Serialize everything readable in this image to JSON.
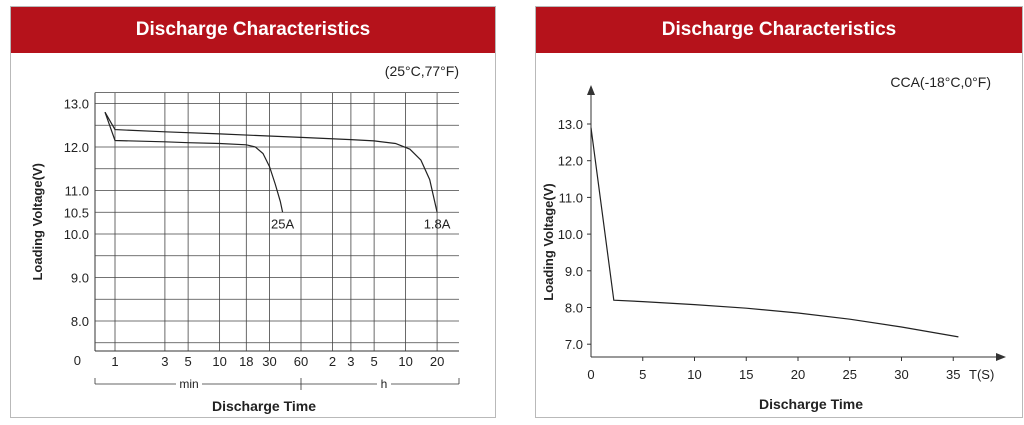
{
  "chart_data": [
    {
      "type": "line",
      "title": "Discharge Characteristics",
      "annotation": "(25°C,77°F)",
      "xlabel": "Discharge Time",
      "ylabel": "Loading Voltage(V)",
      "y_ticks": [
        "13.0",
        "12.0",
        "11.0",
        "10.5",
        "10.0",
        "9.0",
        "8.0"
      ],
      "y_zero_label": "0",
      "x_ticks": [
        "1",
        "3",
        "5",
        "10",
        "18",
        "30",
        "60",
        "2",
        "3",
        "5",
        "10",
        "20"
      ],
      "x_scale": "log (min, then h)",
      "x_unit_min": "min",
      "x_unit_h": "h",
      "grid": true,
      "series": [
        {
          "name": "25A",
          "x_min": [
            0.5,
            1,
            3,
            5,
            10,
            18,
            22,
            26,
            30,
            34,
            38,
            40
          ],
          "values": [
            12.8,
            12.15,
            12.12,
            12.1,
            12.08,
            12.05,
            12.0,
            11.85,
            11.55,
            11.15,
            10.75,
            10.5
          ]
        },
        {
          "name": "1.8A",
          "x_min": [
            0.5,
            1,
            3,
            10,
            60,
            180,
            300,
            480,
            660,
            840,
            1020,
            1200
          ],
          "values": [
            12.8,
            12.4,
            12.35,
            12.3,
            12.22,
            12.17,
            12.14,
            12.08,
            11.95,
            11.7,
            11.25,
            10.5
          ]
        }
      ]
    },
    {
      "type": "line",
      "title": "Discharge Characteristics",
      "annotation": "CCA(-18°C,0°F)",
      "xlabel": "Discharge Time",
      "ylabel": "Loading Voltage(V)",
      "x_unit": "T(S)",
      "x_ticks": [
        "0",
        "5",
        "10",
        "15",
        "20",
        "25",
        "30",
        "35"
      ],
      "y_ticks": [
        "7.0",
        "8.0",
        "9.0",
        "10.0",
        "11.0",
        "12.0",
        "13.0"
      ],
      "xlim": [
        0,
        40
      ],
      "ylim": [
        6.6,
        13.9
      ],
      "grid": false,
      "series": [
        {
          "x": [
            0,
            2.2,
            5,
            10,
            15,
            20,
            25,
            30,
            35.5
          ],
          "values": [
            12.9,
            8.2,
            8.16,
            8.08,
            7.98,
            7.85,
            7.68,
            7.47,
            7.2
          ]
        }
      ]
    }
  ]
}
